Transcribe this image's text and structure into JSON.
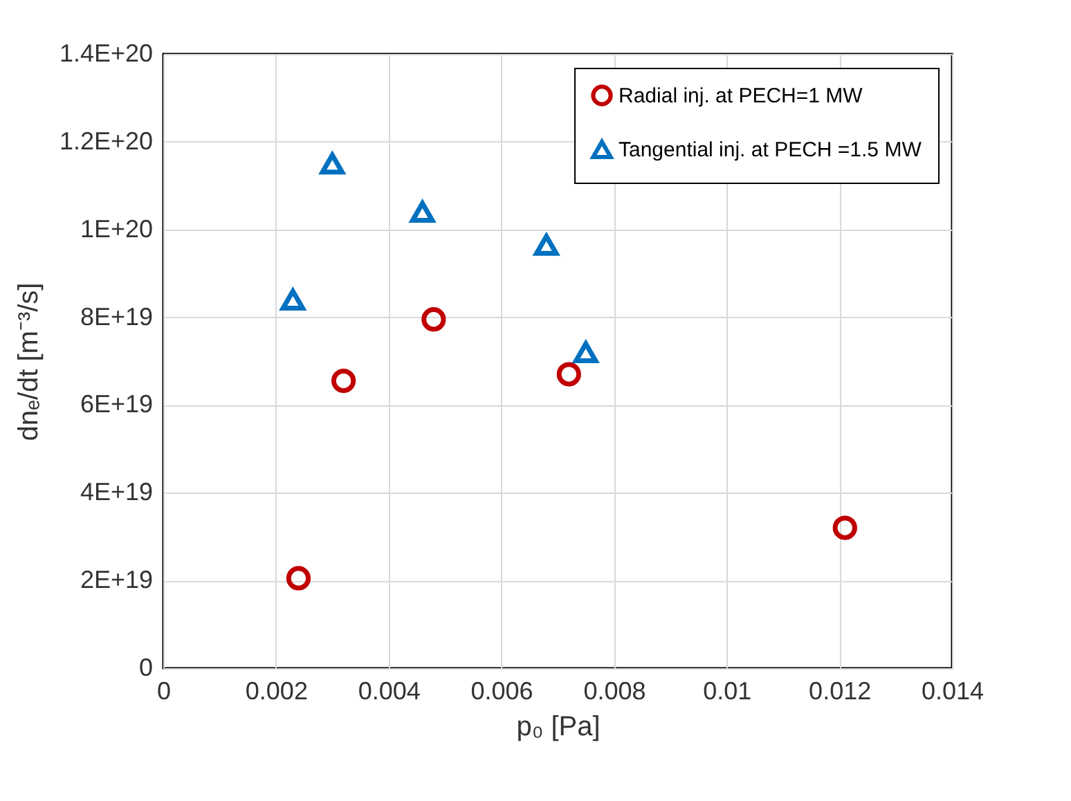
{
  "chart_data": {
    "type": "scatter",
    "xlabel": "p₀ [Pa]",
    "ylabel": "dnₑ/dt [m⁻³/s]",
    "xlim": [
      0,
      0.014
    ],
    "xticks": [
      0,
      0.002,
      0.004,
      0.006,
      0.008,
      0.01,
      0.012,
      0.014
    ],
    "ylim": [
      0,
      1.4e+20
    ],
    "yticks": [
      0,
      {
        "value": 2e+19,
        "label": "2E+19"
      },
      {
        "value": 4e+19,
        "label": "4E+19"
      },
      {
        "value": 6e+19,
        "label": "6E+19"
      },
      {
        "value": 8e+19,
        "label": "8E+19"
      },
      {
        "value": 1e+20,
        "label": "1E+20"
      },
      {
        "value": 1.2e+20,
        "label": "1.2E+20"
      },
      {
        "value": 1.4e+20,
        "label": "1.4E+20"
      }
    ],
    "grid": true,
    "legend": "top right",
    "series": [
      {
        "name": "Radial inj. at PECH=1 MW",
        "color": "#c00000",
        "marker": "circle",
        "x": [
          0.0024,
          0.0032,
          0.0048,
          0.0072,
          0.0121
        ],
        "values": [
          2.05e+19,
          6.55e+19,
          7.95e+19,
          6.7e+19,
          3.2e+19
        ]
      },
      {
        "name": "Tangential inj. at PECH =1.5 MW",
        "color": "#0070c0",
        "marker": "triangle",
        "x": [
          0.0023,
          0.003,
          0.0046,
          0.0068,
          0.0075
        ],
        "values": [
          8.4e+19,
          1.15e+20,
          1.04e+20,
          9.65e+19,
          7.2e+19
        ]
      }
    ]
  }
}
